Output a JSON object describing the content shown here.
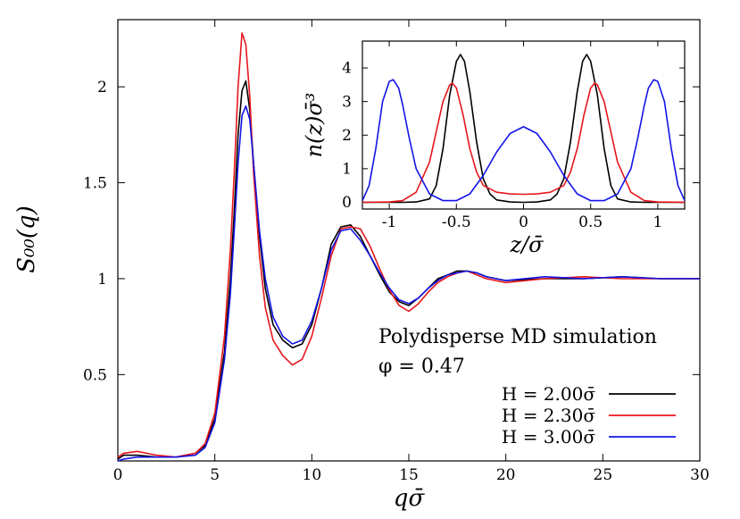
{
  "chart_data": [
    {
      "type": "line",
      "title": "",
      "xlabel": "qσ̄",
      "ylabel": "S₀₀(q)",
      "xlim": [
        0,
        30
      ],
      "ylim": [
        0.05,
        2.35
      ],
      "xticks": [
        "0",
        "5",
        "10",
        "15",
        "20",
        "25",
        "30"
      ],
      "yticks": [
        "0.5",
        "1",
        "1.5",
        "2"
      ],
      "grid": false,
      "legend_position": "bottom-right",
      "annotations": [
        "Polydisperse MD simulation",
        "φ = 0.47"
      ],
      "series": [
        {
          "name": "H = 2.00σ̄",
          "color": "#000000",
          "x": [
            0,
            0.3,
            1,
            2,
            3,
            4,
            4.5,
            5,
            5.5,
            5.8,
            6,
            6.2,
            6.4,
            6.6,
            6.8,
            7,
            7.3,
            7.6,
            8,
            8.5,
            9,
            9.5,
            10,
            10.5,
            11,
            11.5,
            12,
            12.5,
            13,
            13.5,
            14,
            14.5,
            15,
            15.5,
            16,
            16.5,
            17,
            17.5,
            18,
            18.5,
            19,
            20,
            22,
            24,
            26,
            28,
            30
          ],
          "values": [
            0.06,
            0.08,
            0.08,
            0.07,
            0.07,
            0.09,
            0.13,
            0.27,
            0.62,
            1.0,
            1.35,
            1.75,
            1.98,
            2.03,
            1.88,
            1.6,
            1.22,
            0.95,
            0.76,
            0.68,
            0.64,
            0.66,
            0.76,
            0.95,
            1.18,
            1.27,
            1.28,
            1.22,
            1.12,
            1.02,
            0.93,
            0.88,
            0.86,
            0.9,
            0.95,
            1.0,
            1.02,
            1.04,
            1.04,
            1.03,
            1.01,
            0.99,
            1.0,
            1.0,
            1.01,
            1.0,
            1.0
          ]
        },
        {
          "name": "H = 2.30σ̄",
          "color": "#e8161b",
          "x": [
            0,
            0.3,
            1,
            2,
            3,
            4,
            4.5,
            5,
            5.5,
            5.8,
            6,
            6.2,
            6.4,
            6.6,
            6.8,
            7,
            7.3,
            7.6,
            8,
            8.5,
            9,
            9.5,
            10,
            10.5,
            11,
            11.5,
            12,
            12.5,
            13,
            13.5,
            14,
            14.5,
            15,
            15.5,
            16,
            16.5,
            17,
            17.5,
            18,
            18.5,
            19,
            20,
            22,
            24,
            26,
            28,
            30
          ],
          "values": [
            0.07,
            0.09,
            0.1,
            0.08,
            0.07,
            0.09,
            0.14,
            0.3,
            0.7,
            1.15,
            1.55,
            2.0,
            2.28,
            2.22,
            1.95,
            1.55,
            1.12,
            0.85,
            0.68,
            0.6,
            0.55,
            0.58,
            0.7,
            0.9,
            1.12,
            1.26,
            1.27,
            1.26,
            1.17,
            1.05,
            0.94,
            0.86,
            0.83,
            0.87,
            0.93,
            0.98,
            1.01,
            1.03,
            1.04,
            1.02,
            1.0,
            0.98,
            1.0,
            1.01,
            1.0,
            1.0,
            1.0
          ]
        },
        {
          "name": "H = 3.00σ̄",
          "color": "#1414e6",
          "x": [
            0,
            0.3,
            1,
            2,
            3,
            4,
            4.5,
            5,
            5.5,
            5.8,
            6,
            6.2,
            6.4,
            6.6,
            6.8,
            7,
            7.3,
            7.6,
            8,
            8.5,
            9,
            9.5,
            10,
            10.5,
            11,
            11.5,
            12,
            12.5,
            13,
            13.5,
            14,
            14.5,
            15,
            15.5,
            16,
            16.5,
            17,
            17.5,
            18,
            18.5,
            19,
            20,
            22,
            24,
            26,
            28,
            30
          ],
          "values": [
            0.05,
            0.06,
            0.07,
            0.07,
            0.07,
            0.08,
            0.12,
            0.25,
            0.58,
            0.92,
            1.25,
            1.6,
            1.85,
            1.9,
            1.83,
            1.6,
            1.25,
            1.0,
            0.8,
            0.7,
            0.66,
            0.68,
            0.78,
            0.95,
            1.15,
            1.25,
            1.26,
            1.2,
            1.12,
            1.03,
            0.95,
            0.89,
            0.87,
            0.9,
            0.95,
            0.99,
            1.02,
            1.03,
            1.04,
            1.03,
            1.01,
            0.99,
            1.01,
            1.0,
            1.01,
            1.0,
            1.0
          ]
        }
      ]
    },
    {
      "type": "line",
      "title": "",
      "xlabel": "z/σ̄",
      "ylabel": "n(z)σ̄³",
      "xlim": [
        -1.2,
        1.2
      ],
      "ylim": [
        -0.2,
        4.8
      ],
      "xticks": [
        "-1",
        "-0.5",
        "0",
        "0.5",
        "1"
      ],
      "yticks": [
        "0",
        "1",
        "2",
        "3",
        "4"
      ],
      "grid": false,
      "series": [
        {
          "name": "",
          "color": "#000000",
          "x": [
            -1.2,
            -0.9,
            -0.8,
            -0.7,
            -0.65,
            -0.6,
            -0.55,
            -0.5,
            -0.47,
            -0.44,
            -0.4,
            -0.35,
            -0.3,
            -0.25,
            -0.2,
            -0.1,
            0,
            0.1,
            0.2,
            0.25,
            0.3,
            0.35,
            0.4,
            0.44,
            0.47,
            0.5,
            0.55,
            0.6,
            0.65,
            0.7,
            0.8,
            0.9,
            1.2
          ],
          "values": [
            0,
            0,
            0.01,
            0.1,
            0.5,
            1.6,
            3.2,
            4.2,
            4.4,
            4.2,
            3.3,
            1.8,
            0.7,
            0.25,
            0.07,
            0.01,
            0,
            0.01,
            0.07,
            0.25,
            0.7,
            1.8,
            3.3,
            4.2,
            4.4,
            4.2,
            3.2,
            1.6,
            0.5,
            0.1,
            0.01,
            0,
            0
          ]
        },
        {
          "name": "",
          "color": "#e8161b",
          "x": [
            -1.2,
            -1.0,
            -0.9,
            -0.8,
            -0.7,
            -0.65,
            -0.6,
            -0.55,
            -0.53,
            -0.5,
            -0.45,
            -0.4,
            -0.35,
            -0.3,
            -0.2,
            -0.1,
            0,
            0.1,
            0.2,
            0.3,
            0.35,
            0.4,
            0.45,
            0.5,
            0.53,
            0.55,
            0.6,
            0.65,
            0.7,
            0.8,
            0.9,
            1.0,
            1.2
          ],
          "values": [
            0,
            0.01,
            0.05,
            0.3,
            1.2,
            2.1,
            3.0,
            3.5,
            3.55,
            3.4,
            2.6,
            1.6,
            0.9,
            0.5,
            0.3,
            0.25,
            0.24,
            0.25,
            0.3,
            0.5,
            0.9,
            1.6,
            2.6,
            3.4,
            3.55,
            3.5,
            3.0,
            2.1,
            1.2,
            0.3,
            0.05,
            0.01,
            0
          ]
        },
        {
          "name": "",
          "color": "#1414e6",
          "x": [
            -1.2,
            -1.15,
            -1.1,
            -1.05,
            -1.0,
            -0.97,
            -0.93,
            -0.9,
            -0.85,
            -0.8,
            -0.7,
            -0.6,
            -0.5,
            -0.4,
            -0.3,
            -0.2,
            -0.1,
            0,
            0.1,
            0.2,
            0.3,
            0.4,
            0.5,
            0.6,
            0.7,
            0.8,
            0.85,
            0.9,
            0.93,
            0.97,
            1.0,
            1.05,
            1.1,
            1.15,
            1.2
          ],
          "values": [
            0.05,
            0.5,
            1.6,
            3.0,
            3.6,
            3.65,
            3.4,
            2.9,
            1.9,
            1.0,
            0.25,
            0.05,
            0.05,
            0.25,
            0.8,
            1.5,
            2.05,
            2.25,
            2.05,
            1.5,
            0.8,
            0.25,
            0.05,
            0.05,
            0.25,
            1.0,
            1.9,
            2.9,
            3.4,
            3.65,
            3.6,
            3.0,
            1.6,
            0.5,
            0.05
          ]
        }
      ]
    }
  ]
}
